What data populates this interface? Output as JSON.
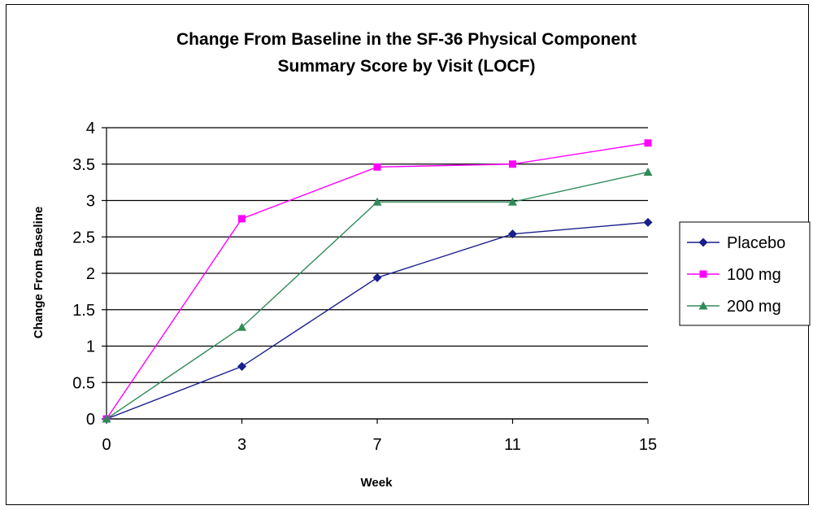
{
  "chart_data": {
    "type": "line",
    "title": [
      "Change From Baseline in the SF-36 Physical Component",
      "Summary Score by Visit (LOCF)"
    ],
    "xlabel": "Week",
    "ylabel": "Change From Baseline",
    "categories": [
      "0",
      "3",
      "7",
      "11",
      "15"
    ],
    "ylim": [
      0,
      4
    ],
    "yticks": [
      "0",
      "0.5",
      "1",
      "1.5",
      "2",
      "2.5",
      "3",
      "3.5",
      "4"
    ],
    "grid": true,
    "legend_position": "right",
    "series": [
      {
        "name": "Placebo",
        "values": [
          0,
          0.72,
          1.94,
          2.54,
          2.7
        ],
        "color": "#1a1f8c",
        "marker": "diamond"
      },
      {
        "name": "100 mg",
        "values": [
          0,
          2.75,
          3.46,
          3.5,
          3.79
        ],
        "color": "#ff00ff",
        "marker": "square"
      },
      {
        "name": "200 mg",
        "values": [
          0,
          1.26,
          2.98,
          2.98,
          3.39
        ],
        "color": "#2e8b57",
        "marker": "triangle"
      }
    ]
  }
}
